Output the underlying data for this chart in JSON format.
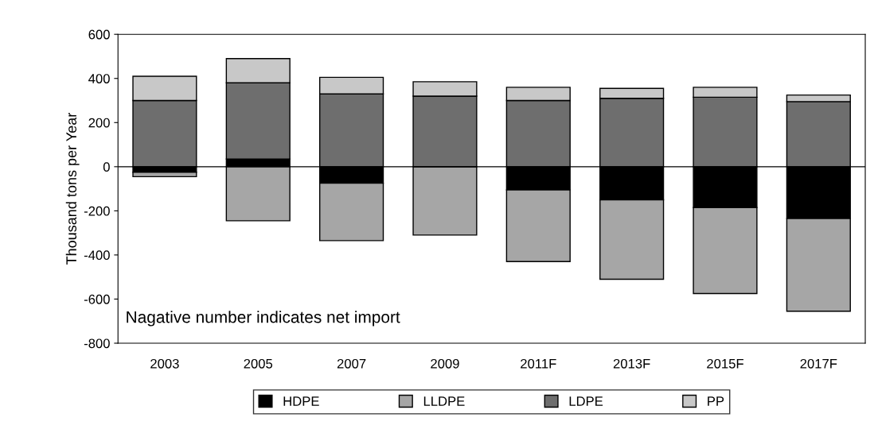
{
  "chart_data": {
    "type": "bar",
    "stacked": true,
    "ylabel": "Thousand tons per Year",
    "categories": [
      "2003",
      "2005",
      "2007",
      "2009",
      "2011F",
      "2013F",
      "2015F",
      "2017F"
    ],
    "series": [
      {
        "name": "HDPE",
        "color": "#000000",
        "values": [
          -25,
          35,
          -75,
          0,
          -105,
          -150,
          -185,
          -235
        ]
      },
      {
        "name": "LLDPE",
        "color": "#a6a6a6",
        "values": [
          -20,
          -245,
          -260,
          -310,
          -325,
          -360,
          -390,
          -420
        ]
      },
      {
        "name": "LDPE",
        "color": "#6e6e6e",
        "values": [
          300,
          345,
          330,
          320,
          300,
          310,
          315,
          295
        ]
      },
      {
        "name": "PP",
        "color": "#c8c8c8",
        "values": [
          110,
          110,
          75,
          65,
          60,
          45,
          45,
          30
        ]
      }
    ],
    "ylim": [
      -800,
      600
    ],
    "yticks": [
      -800,
      -600,
      -400,
      -200,
      0,
      200,
      400,
      600
    ],
    "legend": "bottom",
    "ref_lines": [
      {
        "axis": "y",
        "value": 0,
        "color": "#000000"
      }
    ],
    "annotations": [
      "Nagative number indicates net import"
    ]
  }
}
